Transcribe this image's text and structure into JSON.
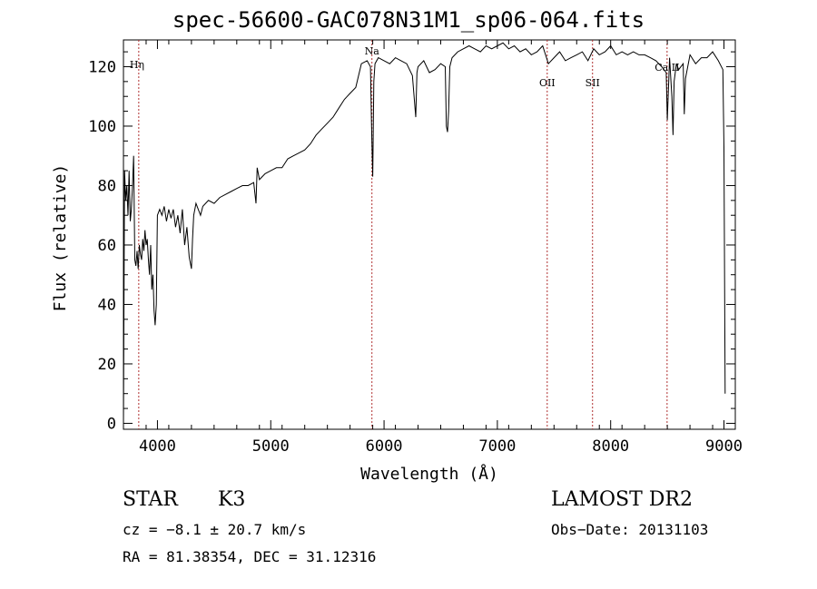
{
  "chart_data": {
    "type": "line",
    "title": "spec-56600-GAC078N31M1_sp06-064.fits",
    "xlabel": "Wavelength (Å)",
    "ylabel": "Flux (relative)",
    "xlim": [
      3700,
      9100
    ],
    "ylim": [
      -2,
      129
    ],
    "xticks": [
      4000,
      5000,
      6000,
      7000,
      8000,
      9000
    ],
    "yticks": [
      0,
      20,
      40,
      60,
      80,
      100,
      120
    ],
    "grid": false,
    "series": [
      {
        "x": [
          3700,
          3710,
          3720,
          3730,
          3740,
          3750,
          3760,
          3770,
          3780,
          3790,
          3800,
          3810,
          3820,
          3830,
          3840,
          3850,
          3860,
          3870,
          3880,
          3890,
          3900,
          3910,
          3920,
          3930,
          3940,
          3950,
          3960,
          3970,
          3980,
          3990,
          4000,
          4020,
          4040,
          4060,
          4080,
          4100,
          4120,
          4140,
          4160,
          4180,
          4200,
          4220,
          4240,
          4260,
          4280,
          4300,
          4310,
          4320,
          4340,
          4360,
          4380,
          4400,
          4450,
          4500,
          4550,
          4600,
          4650,
          4700,
          4750,
          4800,
          4850,
          4870,
          4880,
          4900,
          4950,
          5000,
          5050,
          5100,
          5150,
          5200,
          5250,
          5300,
          5350,
          5400,
          5450,
          5500,
          5550,
          5600,
          5650,
          5700,
          5750,
          5800,
          5850,
          5880,
          5890,
          5900,
          5910,
          5920,
          5950,
          6000,
          6050,
          6100,
          6150,
          6200,
          6250,
          6280,
          6290,
          6300,
          6350,
          6400,
          6450,
          6500,
          6540,
          6550,
          6560,
          6570,
          6580,
          6600,
          6650,
          6700,
          6750,
          6800,
          6850,
          6900,
          6950,
          7000,
          7050,
          7100,
          7150,
          7200,
          7250,
          7300,
          7350,
          7400,
          7450,
          7500,
          7550,
          7600,
          7650,
          7700,
          7750,
          7800,
          7850,
          7900,
          7950,
          8000,
          8050,
          8100,
          8150,
          8200,
          8250,
          8300,
          8350,
          8400,
          8450,
          8490,
          8500,
          8520,
          8540,
          8550,
          8560,
          8580,
          8600,
          8640,
          8650,
          8660,
          8700,
          8750,
          8800,
          8850,
          8900,
          8950,
          8990,
          9000,
          9010
        ],
        "y": [
          0,
          85,
          75,
          80,
          70,
          85,
          68,
          72,
          80,
          90,
          55,
          53,
          58,
          52,
          60,
          57,
          55,
          62,
          58,
          65,
          60,
          62,
          55,
          50,
          60,
          45,
          50,
          38,
          33,
          40,
          70,
          72,
          70,
          73,
          68,
          72,
          69,
          72,
          66,
          70,
          64,
          72,
          60,
          66,
          56,
          52,
          62,
          70,
          74,
          72,
          70,
          73,
          75,
          74,
          76,
          77,
          78,
          79,
          80,
          80,
          81,
          74,
          86,
          82,
          84,
          85,
          86,
          86,
          89,
          90,
          91,
          92,
          94,
          97,
          99,
          101,
          103,
          106,
          109,
          111,
          113,
          121,
          122,
          120,
          100,
          83,
          115,
          121,
          123,
          122,
          121,
          123,
          122,
          121,
          117,
          103,
          118,
          120,
          122,
          118,
          119,
          121,
          120,
          100,
          98,
          105,
          120,
          123,
          125,
          126,
          127,
          126,
          125,
          127,
          126,
          127,
          128,
          126,
          127,
          125,
          126,
          124,
          125,
          127,
          121,
          123,
          125,
          122,
          123,
          124,
          125,
          122,
          126,
          124,
          125,
          127,
          124,
          125,
          124,
          125,
          124,
          124,
          123,
          122,
          120,
          118,
          102,
          123,
          110,
          97,
          115,
          121,
          119,
          121,
          104,
          116,
          124,
          121,
          123,
          123,
          125,
          122,
          119,
          93,
          10
        ]
      }
    ],
    "line_markers": [
      {
        "label": "Hη",
        "x": 3835
      },
      {
        "label": "Na",
        "x": 5893
      },
      {
        "label": "OII",
        "x": 7440
      },
      {
        "label": "SII",
        "x": 7840
      },
      {
        "label": "Ca II",
        "x": 8498
      }
    ]
  },
  "info": {
    "object_type": "STAR",
    "subclass": "K3",
    "survey": "LAMOST DR2",
    "cz": "cz = −8.1 ± 20.7 km/s",
    "obs_date": "Obs−Date: 20131103",
    "coords": "RA =  81.38354, DEC =  31.12316"
  }
}
